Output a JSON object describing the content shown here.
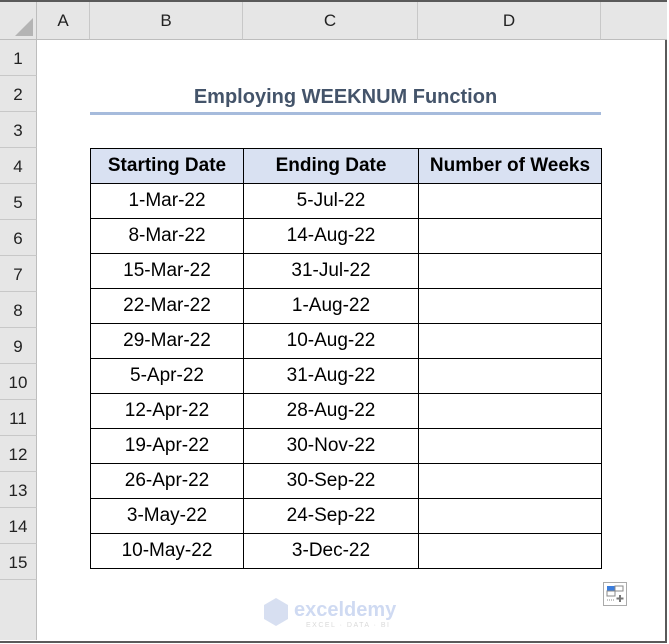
{
  "columns": [
    "A",
    "B",
    "C",
    "D"
  ],
  "rows": [
    "1",
    "2",
    "3",
    "4",
    "5",
    "6",
    "7",
    "8",
    "9",
    "10",
    "11",
    "12",
    "13",
    "14",
    "15"
  ],
  "title": "Employing WEEKNUM Function",
  "table": {
    "headers": [
      "Starting Date",
      "Ending Date",
      "Number of Weeks"
    ],
    "rows": [
      [
        "1-Mar-22",
        "5-Jul-22",
        ""
      ],
      [
        "8-Mar-22",
        "14-Aug-22",
        ""
      ],
      [
        "15-Mar-22",
        "31-Jul-22",
        ""
      ],
      [
        "22-Mar-22",
        "1-Aug-22",
        ""
      ],
      [
        "29-Mar-22",
        "10-Aug-22",
        ""
      ],
      [
        "5-Apr-22",
        "31-Aug-22",
        ""
      ],
      [
        "12-Apr-22",
        "28-Aug-22",
        ""
      ],
      [
        "19-Apr-22",
        "30-Nov-22",
        ""
      ],
      [
        "26-Apr-22",
        "30-Sep-22",
        ""
      ],
      [
        "3-May-22",
        "24-Sep-22",
        ""
      ],
      [
        "10-May-22",
        "3-Dec-22",
        ""
      ]
    ]
  },
  "watermark": {
    "name": "exceldemy",
    "tagline": "EXCEL · DATA · BI"
  },
  "colors": {
    "header_fill": "#d9e1f2",
    "title": "#44546a",
    "underline": "#a6bbdc"
  }
}
